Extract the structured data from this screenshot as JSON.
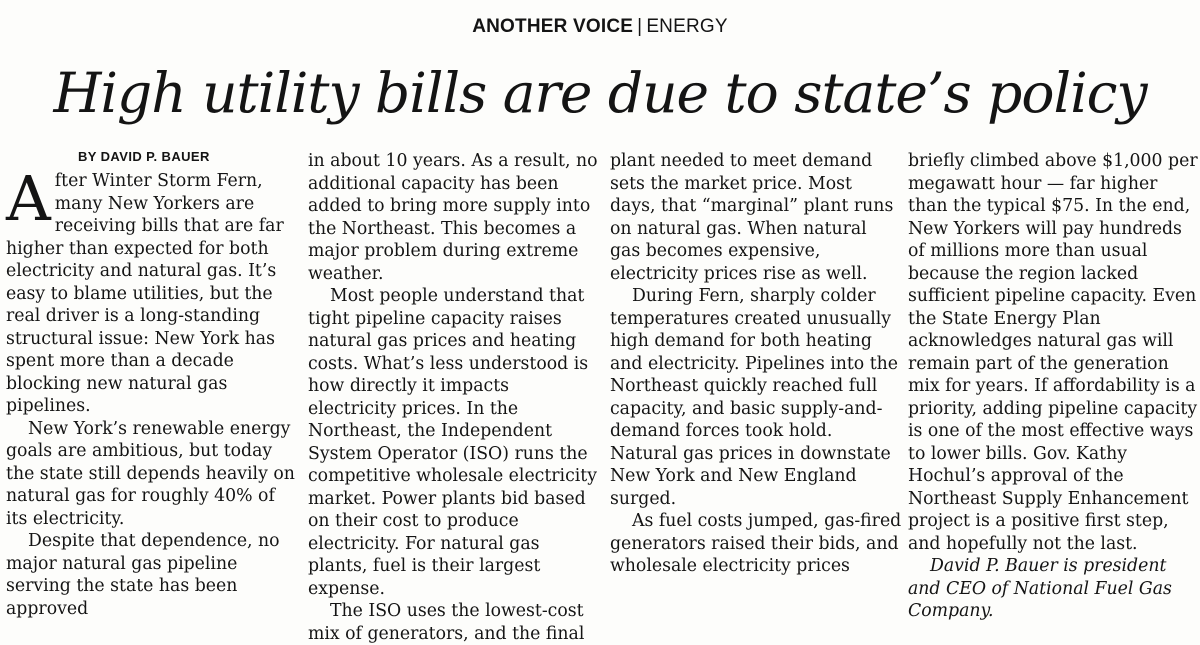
{
  "kicker": {
    "section": "ANOTHER VOICE",
    "separator": "|",
    "topic": "ENERGY"
  },
  "headline": "High utility bills are due to state’s policy",
  "byline": "BY DAVID P. BAUER",
  "article": {
    "dropcap": "A",
    "col1": {
      "p1": "fter Winter Storm Fern, many New Yorkers are receiving bills that are far higher than expected for both electricity and natural gas. It’s easy to blame utilities, but the real driver is a long-standing structural issue: New York has spent more than a decade blocking new natural gas pipelines.",
      "p2": "New York’s renewable energy goals are ambitious, but today the state still depends heavily on natural gas for roughly 40% of its electricity.",
      "p3": "Despite that dependence, no major natural gas pipeline serving the state has been approved"
    },
    "col2": {
      "p1": "in about 10 years. As a result, no additional capacity has been added to bring more supply into the Northeast. This becomes a major problem during extreme weather.",
      "p2": "Most people understand that tight pipeline capacity raises natural gas prices and heating costs. What’s less understood is how directly it impacts electricity prices. In the Northeast, the Independent System Operator (ISO) runs the competitive wholesale electricity market. Power plants bid based on their cost to produce electricity. For natural gas plants, fuel is their largest expense.",
      "p3": "The ISO uses the lowest-cost mix of generators, and the final"
    },
    "col3": {
      "p1": "plant needed to meet demand sets the market price. Most days, that “marginal” plant runs on natural gas. When natural gas becomes expensive, electricity prices rise as well.",
      "p2": "During Fern, sharply colder temperatures created unusually high demand for both heating and electricity. Pipelines into the Northeast quickly reached full capacity, and basic supply-and-demand forces took hold. Natural gas prices in downstate New York and New England surged.",
      "p3": "As fuel costs jumped, gas-fired generators raised their bids, and wholesale electricity prices"
    },
    "col4": {
      "p1": "briefly climbed above $1,000 per megawatt hour — far higher than the typical $75. In the end, New Yorkers will pay hundreds of millions more than usual because the region lacked sufficient pipeline capacity. Even the State Energy Plan acknowledges natural gas will remain part of the generation mix for years. If affordability is a priority, adding pipeline capacity is one of the most effective ways to lower bills. Gov. Kathy Hochul’s approval of the Northeast Supply Enhancement project is a positive first step, and hopefully not the last.",
      "bio": "David P. Bauer is president and CEO of National Fuel Gas Company."
    }
  }
}
